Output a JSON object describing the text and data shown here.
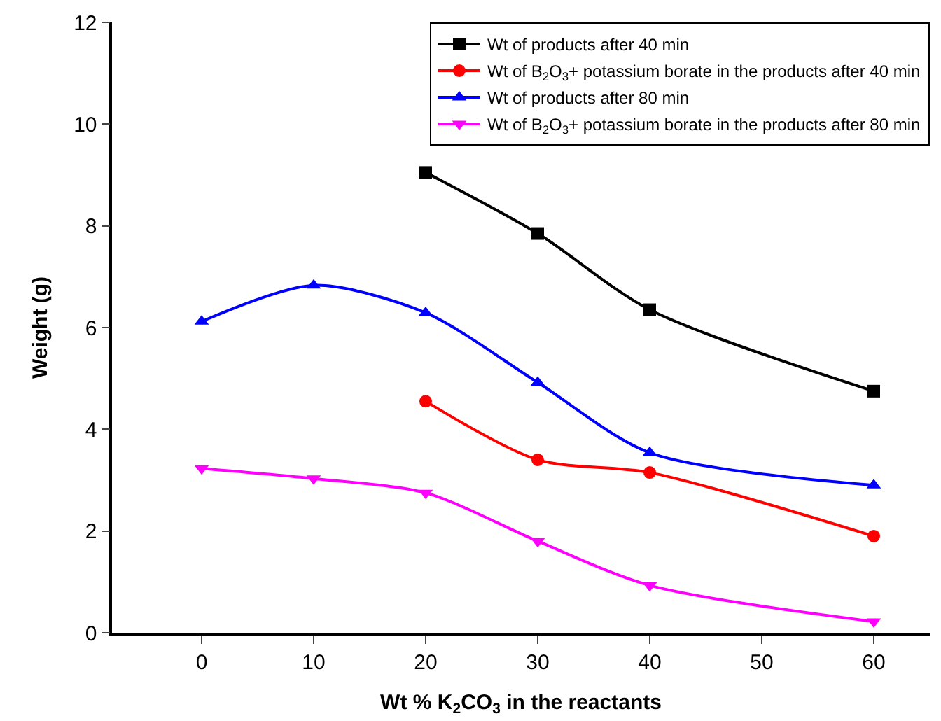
{
  "chart_data": {
    "type": "line",
    "xlabel": "Wt % K$_{2}$CO$_{3}$ in the reactants",
    "ylabel": "Weight (g)",
    "xlim": [
      -8,
      65
    ],
    "xticks": [
      0,
      10,
      20,
      30,
      40,
      50,
      60
    ],
    "ylim": [
      0,
      12
    ],
    "yticks": [
      0,
      2,
      4,
      6,
      8,
      10,
      12
    ],
    "legend": "top right",
    "line_style": "solid",
    "series": [
      {
        "name": "Wt of products after 40 min",
        "color": "#000000",
        "marker": "square",
        "x": [
          20,
          30,
          40,
          60
        ],
        "values": [
          9.05,
          7.85,
          6.35,
          4.75
        ]
      },
      {
        "name": "Wt of B$_{2}$O$_{3}$+ potassium borate in the products after 40 min",
        "color": "#ff0000",
        "marker": "circle",
        "x": [
          20,
          30,
          40,
          60
        ],
        "values": [
          4.55,
          3.4,
          3.15,
          1.9
        ]
      },
      {
        "name": "Wt of products after 80 min",
        "color": "#0000ff",
        "marker": "triangle",
        "x": [
          0,
          10,
          20,
          30,
          40,
          60
        ],
        "values": [
          6.12,
          6.83,
          6.29,
          4.92,
          3.54,
          2.9
        ]
      },
      {
        "name": "Wt of B$_{2}$O$_{3}$+ potassium borate in the products after 80 min",
        "color": "#ff00ff",
        "marker": "triangle-down",
        "x": [
          0,
          10,
          20,
          30,
          40,
          60
        ],
        "values": [
          3.23,
          3.03,
          2.75,
          1.8,
          0.93,
          0.22
        ]
      }
    ]
  }
}
